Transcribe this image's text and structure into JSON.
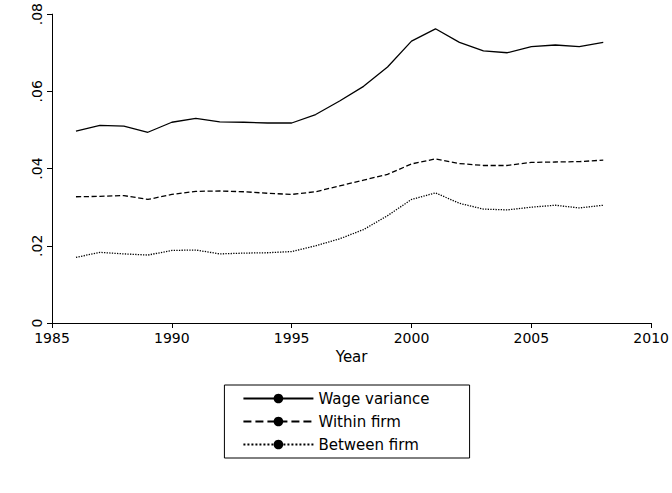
{
  "chart_data": {
    "type": "line",
    "x_label": "Year",
    "x": [
      1986,
      1987,
      1988,
      1989,
      1990,
      1991,
      1992,
      1993,
      1994,
      1995,
      1996,
      1997,
      1998,
      1999,
      2000,
      2001,
      2002,
      2003,
      2004,
      2005,
      2006,
      2007,
      2008
    ],
    "series": [
      {
        "name": "Wage variance",
        "color": "#000000",
        "line_style": "solid",
        "marker": "none",
        "values": [
          0.0497,
          0.0512,
          0.051,
          0.0494,
          0.052,
          0.053,
          0.0521,
          0.052,
          0.0518,
          0.0518,
          0.054,
          0.0575,
          0.0613,
          0.0663,
          0.073,
          0.0762,
          0.0727,
          0.0705,
          0.07,
          0.0716,
          0.072,
          0.0716,
          0.0727
        ]
      },
      {
        "name": "Within firm",
        "color": "#000000",
        "line_style": "dashed",
        "marker": "none",
        "values": [
          0.0327,
          0.0328,
          0.033,
          0.032,
          0.0333,
          0.0341,
          0.0342,
          0.034,
          0.0336,
          0.0333,
          0.034,
          0.0355,
          0.037,
          0.0385,
          0.0412,
          0.0425,
          0.0413,
          0.0408,
          0.0408,
          0.0416,
          0.0417,
          0.0418,
          0.0422
        ]
      },
      {
        "name": "Between firm",
        "color": "#000000",
        "line_style": "dotted",
        "marker": "none",
        "values": [
          0.017,
          0.0183,
          0.0179,
          0.0176,
          0.0188,
          0.0189,
          0.0179,
          0.0181,
          0.0182,
          0.0185,
          0.02,
          0.0218,
          0.0242,
          0.0278,
          0.032,
          0.0337,
          0.031,
          0.0295,
          0.0293,
          0.03,
          0.0305,
          0.0298,
          0.0305
        ]
      }
    ],
    "xlim": [
      1985,
      2010
    ],
    "xticks": [
      1985,
      1990,
      1995,
      2000,
      2005,
      2010
    ],
    "ylim": [
      0,
      0.08
    ],
    "yticks": [
      0,
      {
        "value": 0.02,
        "label": ".02"
      },
      {
        "value": 0.04,
        "label": ".04"
      },
      {
        "value": 0.06,
        "label": ".06"
      },
      {
        "value": 0.08,
        "label": ".08"
      }
    ],
    "grid": false,
    "legend": "bottom"
  }
}
